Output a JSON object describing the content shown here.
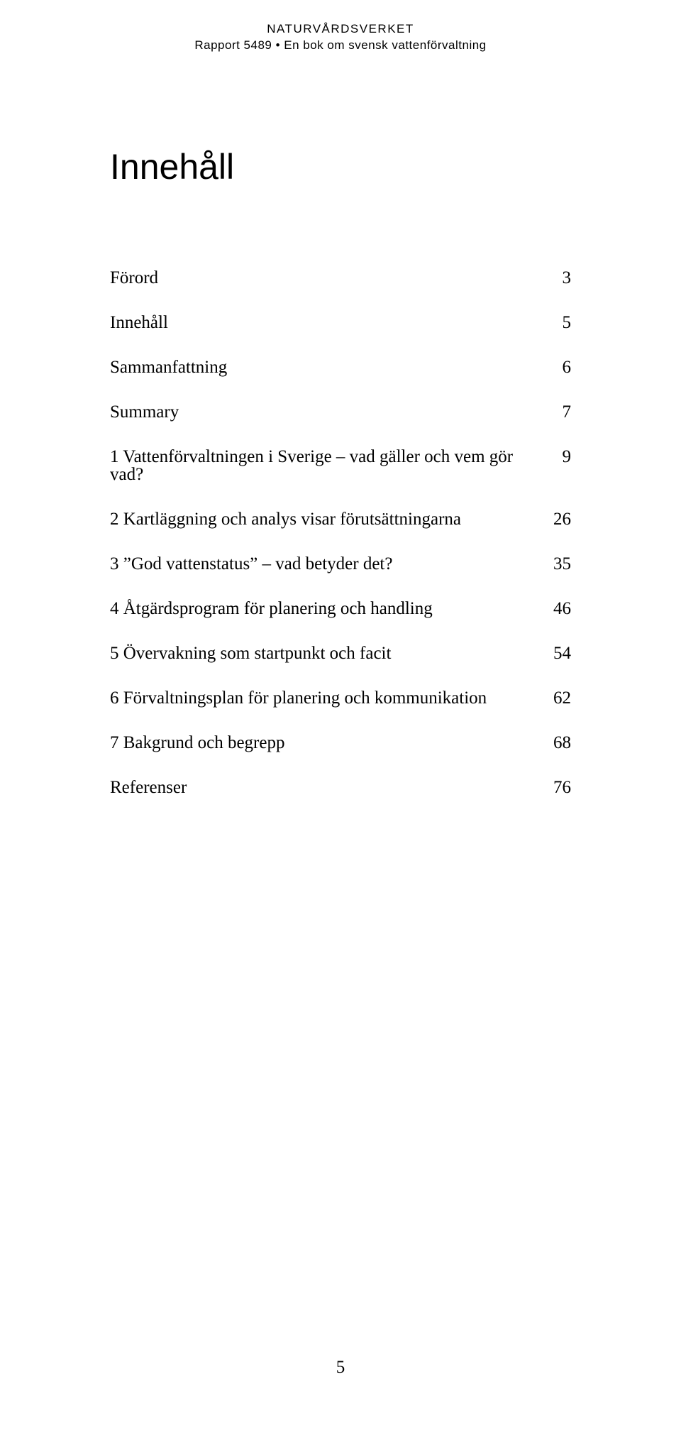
{
  "header": {
    "line1": "NATURVÅRDSVERKET",
    "line2": "Rapport 5489 • En bok om svensk vattenförvaltning"
  },
  "title": "Innehåll",
  "toc": [
    {
      "label": "Förord",
      "page": "3"
    },
    {
      "label": "Innehåll",
      "page": "5"
    },
    {
      "label": "Sammanfattning",
      "page": "6"
    },
    {
      "label": "Summary",
      "page": "7"
    },
    {
      "label": "1  Vattenförvaltningen i Sverige – vad gäller och vem gör vad?",
      "page": "9"
    },
    {
      "label": "2  Kartläggning och analys visar förutsättningarna",
      "page": "26"
    },
    {
      "label": "3  ”God vattenstatus” – vad betyder det?",
      "page": "35"
    },
    {
      "label": "4  Åtgärdsprogram för planering och handling",
      "page": "46"
    },
    {
      "label": "5  Övervakning som startpunkt och facit",
      "page": "54"
    },
    {
      "label": "6  Förvaltningsplan för planering och kommunikation",
      "page": "62"
    },
    {
      "label": "7  Bakgrund och begrepp",
      "page": "68"
    },
    {
      "label": "Referenser",
      "page": "76"
    }
  ],
  "page_number": "5",
  "colors": {
    "background": "#ffffff",
    "text": "#000000"
  },
  "typography": {
    "header_font": "Arial",
    "header_fontsize_pt": 12,
    "title_font": "Arial",
    "title_fontsize_pt": 36,
    "body_font": "Georgia",
    "body_fontsize_pt": 18
  }
}
